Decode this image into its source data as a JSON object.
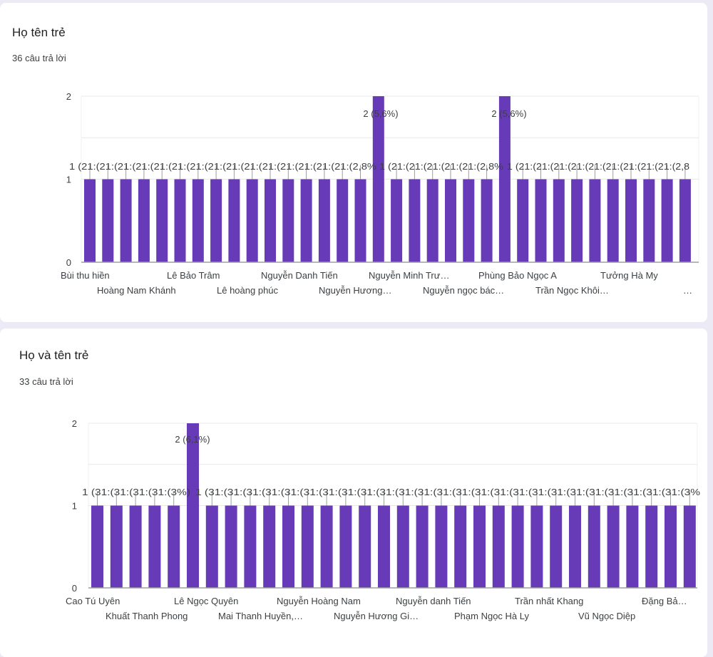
{
  "colors": {
    "bar": "#673ab7",
    "grid": "#e8e8e8",
    "axis": "#9e9e9e",
    "text": "#3c4043"
  },
  "cards": [
    {
      "title": "Họ tên trẻ",
      "subtitle": "36 câu trả lời"
    },
    {
      "title": "Họ và tên trẻ",
      "subtitle": "33 câu trả lời"
    }
  ],
  "chart_data": [
    {
      "type": "bar",
      "title": "Họ tên trẻ",
      "ylim": [
        0,
        2
      ],
      "yticks": [
        "0",
        "1",
        "2"
      ],
      "values": [
        1,
        1,
        1,
        1,
        1,
        1,
        1,
        1,
        1,
        1,
        1,
        1,
        1,
        1,
        1,
        1,
        2,
        1,
        1,
        1,
        1,
        1,
        1,
        2,
        1,
        1,
        1,
        1,
        1,
        1,
        1,
        1,
        1,
        1
      ],
      "data_labels": [
        "1 (2,8%)",
        "(2,8%)",
        "(2,8%)",
        "(2,8%)",
        "(2,8%)",
        "(2,8%)",
        "(2,8%)",
        "(2,8%)",
        "(2,8%)",
        "(2,8%)",
        "(2,8%)",
        "(2,8%)",
        "(2,8%)",
        "(2,8%)",
        "(2,8%)",
        "(2,8%)",
        "2 (5,6%)",
        "1 (2,8%)",
        "(2,8%)",
        "(2,8%)",
        "(2,8%)",
        "(2,8%)",
        "(2,8%)",
        "2 (5,6%)",
        "1 (2,8%)",
        "(2,8%)",
        "(2,8%)",
        "(2,8%)",
        "(2,8%)",
        "(2,8%)",
        "(2,8%)",
        "(2,8%)",
        "(2,8%)",
        "(2,8%)"
      ],
      "visible_data_labels_row": [
        "1 (21:(21:(21:(21:(21:(21:(21:(21:(21:(21:(21:(21:(21:(21:(21:(2,8%",
        "1 (21:(21:(21:(21:(21:(2,8%",
        "1 (21:(21:(21:(21:(21:(21:(21:(21:(21:(2,8"
      ],
      "peak_labels": [
        "2 (5,6%)",
        "2 (5,6%)"
      ],
      "x_tick_labels_row1": [
        "Bùi thu hiền",
        "Lê Bảo Trâm",
        "Nguyễn Danh Tiến",
        "Nguyễn Minh Trư…",
        "Phùng Bảo Ngọc A",
        "Tưởng Hà My"
      ],
      "x_tick_labels_row2": [
        "Hoàng Nam Khánh",
        "Lê hoàng phúc",
        "Nguyễn Hương…",
        "Nguyễn ngọc bác…",
        "Trần Ngọc Khôi…",
        "…"
      ]
    },
    {
      "type": "bar",
      "title": "Họ và tên trẻ",
      "ylim": [
        0,
        2
      ],
      "yticks": [
        "0",
        "1",
        "2"
      ],
      "values": [
        1,
        1,
        1,
        1,
        1,
        2,
        1,
        1,
        1,
        1,
        1,
        1,
        1,
        1,
        1,
        1,
        1,
        1,
        1,
        1,
        1,
        1,
        1,
        1,
        1,
        1,
        1,
        1,
        1,
        1,
        1,
        1
      ],
      "visible_data_labels_row": [
        "1 (31:(31:(31:(31:(3%)",
        "1 (31:(31:(31:(31:(31:(31:(31:(31:(31:(31:(31:(31:(31:(31:(31:(31:(31:(31:(31:(31:(31:(31:(31:(31:(31:(3%"
      ],
      "peak_labels": [
        "2 (6,1%)"
      ],
      "x_tick_labels_row1": [
        "Cao Tú Uyên",
        "Lê Ngọc Quyên",
        "Nguyễn Hoàng Nam",
        "Nguyễn danh Tiến",
        "Trần nhất Khang",
        "Đặng Bả…"
      ],
      "x_tick_labels_row2": [
        "Khuất Thanh Phong",
        "Mai Thanh Huyền,…",
        "Nguyễn Hương Gi…",
        "Phạm Ngọc Hà Ly",
        "Vũ Ngọc Diệp"
      ]
    }
  ]
}
